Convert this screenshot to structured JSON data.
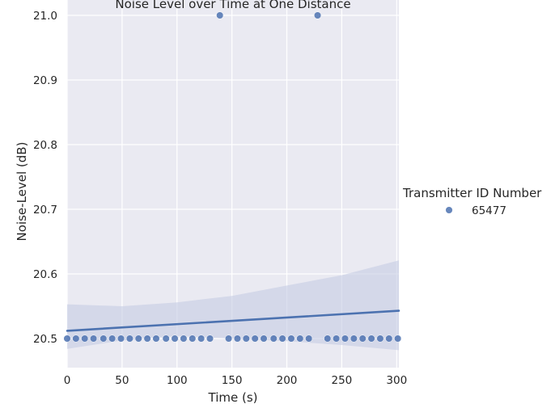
{
  "chart_data": {
    "type": "scatter",
    "title": "Noise Level over Time at One Distance",
    "xlabel": "Time (s)",
    "ylabel": "Noise-Level (dB)",
    "xlim": [
      0,
      302
    ],
    "ylim": [
      20.455,
      21.025
    ],
    "x_ticks": [
      0,
      50,
      100,
      150,
      200,
      250,
      300
    ],
    "y_ticks": [
      20.5,
      20.6,
      20.7,
      20.8,
      20.9,
      21.0
    ],
    "y_tick_labels": [
      "20.5",
      "20.6",
      "20.7",
      "20.8",
      "20.9",
      "21.0"
    ],
    "grid": true,
    "legend": {
      "title": "Transmitter ID Number",
      "position": "right"
    },
    "colors": {
      "background": "#eaeaf2",
      "grid": "#ffffff",
      "series": "#4c72b0",
      "band": "#c5cce3"
    },
    "series": [
      {
        "name": "65477",
        "points": [
          [
            0,
            20.5
          ],
          [
            8,
            20.5
          ],
          [
            16,
            20.5
          ],
          [
            24,
            20.5
          ],
          [
            33,
            20.5
          ],
          [
            41,
            20.5
          ],
          [
            49,
            20.5
          ],
          [
            57,
            20.5
          ],
          [
            65,
            20.5
          ],
          [
            73,
            20.5
          ],
          [
            81,
            20.5
          ],
          [
            90,
            20.5
          ],
          [
            98,
            20.5
          ],
          [
            106,
            20.5
          ],
          [
            114,
            20.5
          ],
          [
            122,
            20.5
          ],
          [
            130,
            20.5
          ],
          [
            139,
            21.0
          ],
          [
            147,
            20.5
          ],
          [
            155,
            20.5
          ],
          [
            163,
            20.5
          ],
          [
            171,
            20.5
          ],
          [
            179,
            20.5
          ],
          [
            188,
            20.5
          ],
          [
            196,
            20.5
          ],
          [
            204,
            20.5
          ],
          [
            212,
            20.5
          ],
          [
            220,
            20.5
          ],
          [
            228,
            21.0
          ],
          [
            237,
            20.5
          ],
          [
            245,
            20.5
          ],
          [
            253,
            20.5
          ],
          [
            261,
            20.5
          ],
          [
            269,
            20.5
          ],
          [
            277,
            20.5
          ],
          [
            285,
            20.5
          ],
          [
            293,
            20.5
          ],
          [
            301,
            20.5
          ]
        ],
        "regression": {
          "x": [
            0,
            302
          ],
          "y": [
            20.512,
            20.543
          ]
        },
        "confidence_band": {
          "x": [
            0,
            50,
            100,
            150,
            200,
            250,
            302
          ],
          "upper": [
            20.553,
            20.55,
            20.556,
            20.566,
            20.582,
            20.598,
            20.621
          ],
          "lower": [
            20.484,
            20.497,
            20.504,
            20.5,
            20.496,
            20.49,
            20.482
          ]
        }
      }
    ]
  }
}
